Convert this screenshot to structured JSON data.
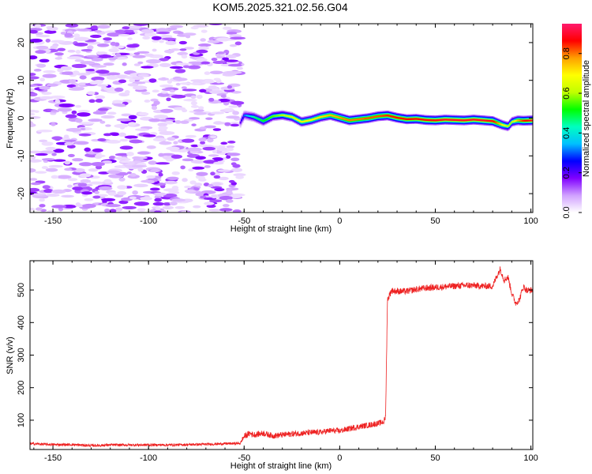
{
  "title": "KOM5.2025.321.02.56.G04",
  "chart_data": [
    {
      "type": "heatmap",
      "xlabel": "Height of straight line (km)",
      "ylabel": "Frequency (Hz)",
      "xlim": [
        -162,
        101
      ],
      "ylim": [
        -25,
        25
      ],
      "x_ticks": [
        -150,
        -100,
        -50,
        0,
        50,
        100
      ],
      "y_ticks": [
        -20,
        -10,
        0,
        10,
        20
      ],
      "colorbar": {
        "label": "Normalized spectral amplitude",
        "range": [
          0,
          0.95
        ],
        "ticks": [
          0.0,
          0.2,
          0.4,
          0.6,
          0.8
        ],
        "colors": [
          "#ffffff",
          "#d0a0ff",
          "#8000ff",
          "#0000ff",
          "#00c0ff",
          "#00ffc0",
          "#00ff00",
          "#c0ff00",
          "#ffff00",
          "#ffa000",
          "#ff0000",
          "#ff1a6e"
        ]
      },
      "noise_region": {
        "x_range": [
          -162,
          -52
        ],
        "amplitude_range": [
          0.0,
          0.15
        ]
      },
      "signal_trace": {
        "x": [
          -52,
          -50,
          -45,
          -40,
          -35,
          -30,
          -25,
          -20,
          -15,
          -10,
          -5,
          0,
          5,
          10,
          15,
          20,
          25,
          30,
          35,
          40,
          45,
          50,
          55,
          60,
          65,
          70,
          75,
          80,
          85,
          88,
          90,
          93,
          96,
          101
        ],
        "frequency": [
          -1.2,
          0.8,
          0.3,
          -0.8,
          0.5,
          0.8,
          0.3,
          -1.0,
          -0.5,
          0.3,
          0.8,
          0.1,
          -0.6,
          -0.3,
          0.0,
          0.5,
          0.7,
          0.1,
          -0.3,
          -0.2,
          -0.5,
          -0.6,
          -0.4,
          -0.5,
          -0.6,
          -0.4,
          -0.6,
          -0.8,
          -1.8,
          -2.2,
          -1.0,
          -0.6,
          -0.7,
          -0.6
        ],
        "amplitude": [
          0.2,
          0.3,
          0.45,
          0.5,
          0.55,
          0.6,
          0.65,
          0.7,
          0.7,
          0.72,
          0.75,
          0.78,
          0.8,
          0.8,
          0.82,
          0.82,
          0.85,
          0.86,
          0.86,
          0.87,
          0.88,
          0.88,
          0.9,
          0.9,
          0.9,
          0.9,
          0.9,
          0.88,
          0.7,
          0.6,
          0.6,
          0.75,
          0.85,
          0.9
        ]
      }
    },
    {
      "type": "line",
      "xlabel": "Height of straight line (km)",
      "ylabel": "SNR (v/v)",
      "xlim": [
        -162,
        101
      ],
      "ylim": [
        10,
        590
      ],
      "x_ticks": [
        -150,
        -100,
        -50,
        0,
        50,
        100
      ],
      "y_ticks": [
        100,
        200,
        300,
        400,
        500
      ],
      "series": [
        {
          "color": "#ee2222",
          "x": [
            -162,
            -150,
            -140,
            -130,
            -120,
            -110,
            -100,
            -90,
            -80,
            -70,
            -60,
            -52,
            -50,
            -47,
            -45,
            -40,
            -35,
            -30,
            -25,
            -20,
            -15,
            -10,
            -5,
            0,
            5,
            10,
            15,
            20,
            23,
            24,
            24.5,
            25,
            27,
            30,
            35,
            40,
            45,
            50,
            55,
            60,
            65,
            70,
            75,
            80,
            82,
            84,
            86,
            88,
            90,
            92,
            94,
            96,
            98,
            101
          ],
          "y": [
            28,
            25,
            25,
            22,
            24,
            24,
            24,
            24,
            25,
            26,
            28,
            29,
            50,
            60,
            55,
            60,
            52,
            55,
            58,
            60,
            62,
            63,
            68,
            67,
            74,
            80,
            85,
            90,
            95,
            110,
            300,
            470,
            498,
            496,
            496,
            502,
            506,
            508,
            510,
            512,
            514,
            514,
            512,
            512,
            540,
            565,
            530,
            540,
            490,
            460,
            470,
            510,
            498,
            500
          ]
        }
      ]
    }
  ]
}
